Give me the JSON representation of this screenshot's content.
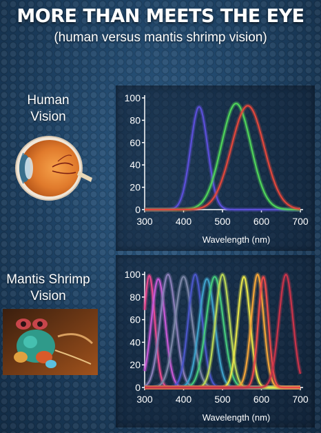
{
  "title": "MORE THAN MEETS THE EYE",
  "subtitle": "(human versus mantis shrimp vision)",
  "sections": {
    "human": "Human\nVision",
    "shrimp": "Mantis Shrimp\nVision"
  },
  "colors": {
    "background": "#1f4467",
    "tick_text": "#ffffff"
  },
  "chart_data": [
    {
      "type": "line",
      "section": "Human Vision",
      "xlabel": "Wavelength (nm)",
      "ylabel": "",
      "xlim": [
        300,
        700
      ],
      "ylim": [
        0,
        100
      ],
      "xticks": [
        300,
        400,
        500,
        600,
        700
      ],
      "yticks": [
        0,
        20,
        40,
        60,
        80,
        100
      ],
      "series": [
        {
          "color": "#5b4fd8",
          "peak": 440,
          "width": 22,
          "height": 92
        },
        {
          "color": "#4fd35a",
          "peak": 535,
          "width": 38,
          "height": 95
        },
        {
          "color": "#e0473c",
          "peak": 565,
          "width": 42,
          "height": 93
        }
      ]
    },
    {
      "type": "line",
      "section": "Mantis Shrimp Vision",
      "xlabel": "Wavelength (nm)",
      "ylabel": "",
      "xlim": [
        300,
        700
      ],
      "ylim": [
        0,
        100
      ],
      "xticks": [
        300,
        400,
        500,
        600,
        700
      ],
      "yticks": [
        0,
        20,
        40,
        60,
        80,
        100
      ],
      "series": [
        {
          "color": "#e8498f",
          "peak": 312,
          "width": 14,
          "height": 99
        },
        {
          "color": "#c75ad6",
          "peak": 335,
          "width": 18,
          "height": 96
        },
        {
          "color": "#8a7fb8",
          "peak": 360,
          "width": 20,
          "height": 100
        },
        {
          "color": "#7b86a6",
          "peak": 400,
          "width": 22,
          "height": 98
        },
        {
          "color": "#4b57c9",
          "peak": 430,
          "width": 18,
          "height": 100
        },
        {
          "color": "#3fa0c8",
          "peak": 460,
          "width": 20,
          "height": 96
        },
        {
          "color": "#46c97c",
          "peak": 480,
          "width": 22,
          "height": 98
        },
        {
          "color": "#b9d657",
          "peak": 500,
          "width": 18,
          "height": 100
        },
        {
          "color": "#e5e34a",
          "peak": 555,
          "width": 16,
          "height": 98
        },
        {
          "color": "#f2a43a",
          "peak": 590,
          "width": 16,
          "height": 100
        },
        {
          "color": "#e84a4a",
          "peak": 605,
          "width": 13,
          "height": 98
        },
        {
          "color": "#c9344a",
          "peak": 663,
          "width": 18,
          "height": 100
        }
      ]
    }
  ]
}
